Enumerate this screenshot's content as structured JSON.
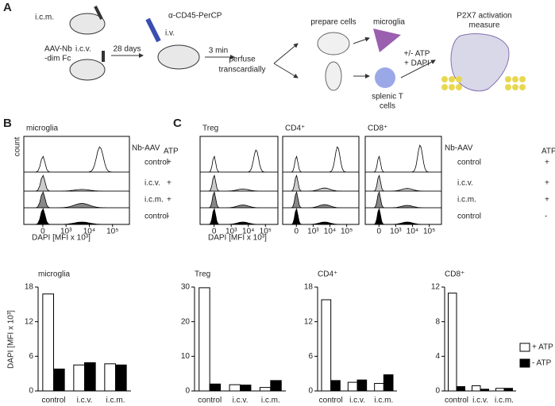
{
  "panel_a": {
    "label": "A",
    "icm": "i.c.m.",
    "aav_line1": "AAV-Nb",
    "aav_line2": "-dim Fc",
    "icv": "i.c.v.",
    "days": "28 days",
    "antibody": "α-CD45-PerCP",
    "iv": "i.v.",
    "minutes": "3 min",
    "perfuse_line1": "perfuse",
    "perfuse_line2": "transcardially",
    "prepare": "prepare cells",
    "microglia": "microglia",
    "splenic_line1": "splenic T",
    "splenic_line2": "cells",
    "atp": "+/- ATP",
    "dapi": "+ DAPI",
    "measure_line1": "P2X7 activation",
    "measure_line2": "measure"
  },
  "histograms": {
    "labels": [
      "B",
      "C"
    ],
    "panels": [
      "microglia",
      "Treg",
      "CD4⁺",
      "CD8⁺"
    ],
    "y_label": "count",
    "x_label": "DAPI [MFI x 10³]",
    "x_ticks": [
      "0",
      "10³",
      "10⁴",
      "10⁵"
    ],
    "header": [
      "Nb-AAV",
      "ATP"
    ],
    "rows": [
      [
        "control",
        "+"
      ],
      [
        "i.c.v.",
        "+"
      ],
      [
        "i.c.m.",
        "+"
      ],
      [
        "control",
        "-"
      ]
    ]
  },
  "chart_data": [
    {
      "type": "bar",
      "title": "microglia",
      "y_label": "DAPI [MFI x 10³]",
      "categories": [
        "control",
        "i.c.v.",
        "i.c.m."
      ],
      "ylim": [
        0,
        18
      ],
      "yticks": [
        0,
        6,
        12,
        18
      ],
      "series": [
        {
          "color": "#ffffff",
          "values": [
            16.8,
            4.5,
            4.7
          ]
        },
        {
          "color": "#000000",
          "values": [
            3.8,
            4.9,
            4.5
          ]
        }
      ]
    },
    {
      "type": "bar",
      "title": "Treg",
      "categories": [
        "control",
        "i.c.v.",
        "i.c.m."
      ],
      "ylim": [
        0,
        30
      ],
      "yticks": [
        0,
        10,
        20,
        30
      ],
      "series": [
        {
          "color": "#ffffff",
          "values": [
            29.8,
            1.8,
            1.0
          ]
        },
        {
          "color": "#000000",
          "values": [
            2.0,
            1.7,
            3.0
          ]
        }
      ]
    },
    {
      "type": "bar",
      "title": "CD4⁺",
      "categories": [
        "control",
        "i.c.v.",
        "i.c.m."
      ],
      "ylim": [
        0,
        18
      ],
      "yticks": [
        0,
        6,
        12,
        18
      ],
      "series": [
        {
          "color": "#ffffff",
          "values": [
            15.8,
            1.5,
            1.3
          ]
        },
        {
          "color": "#000000",
          "values": [
            1.8,
            1.9,
            2.8
          ]
        }
      ]
    },
    {
      "type": "bar",
      "title": "CD8⁺",
      "categories": [
        "control",
        "i.c.v.",
        "i.c.m."
      ],
      "ylim": [
        0,
        12
      ],
      "yticks": [
        0,
        4,
        8,
        12
      ],
      "series": [
        {
          "name": "+ ATP",
          "color": "#ffffff",
          "values": [
            11.3,
            0.6,
            0.3
          ]
        },
        {
          "name": "- ATP",
          "color": "#000000",
          "values": [
            0.5,
            0.2,
            0.3
          ]
        }
      ]
    }
  ]
}
